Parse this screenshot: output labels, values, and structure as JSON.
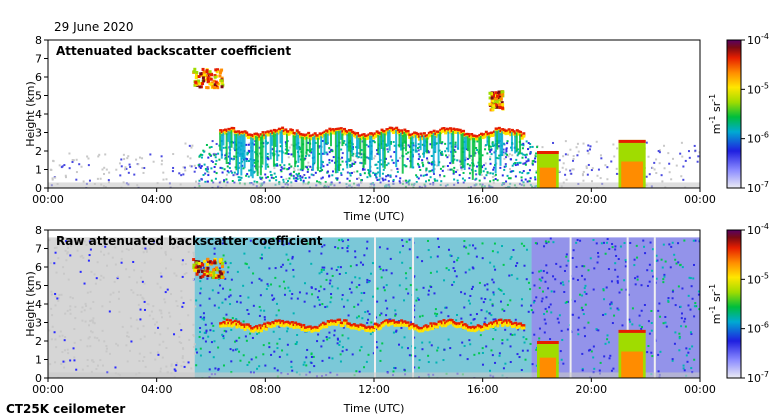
{
  "date": "29 June 2020",
  "instrument": "CT25K ceilometer",
  "colors": {
    "clear_bg": "#ffffff",
    "noise": "#c8c8c8",
    "scale": [
      "#ececf4",
      "#8c8cff",
      "#1f1fe0",
      "#00aad2",
      "#00be3c",
      "#a0dc00",
      "#ffe600",
      "#ff8c00",
      "#e61e00",
      "#7a0a14",
      "#5a0064"
    ]
  },
  "chart_data": [
    {
      "type": "heatmap",
      "title": "Attenuated backscatter coefficient",
      "xlabel": "Time (UTC)",
      "ylabel": "Height (km)",
      "xlim": [
        0,
        24
      ],
      "ylim": [
        0,
        8
      ],
      "x_tick_labels": [
        "00:00",
        "04:00",
        "08:00",
        "12:00",
        "16:00",
        "20:00",
        "00:00"
      ],
      "y_tick_labels": [
        "0",
        "1",
        "2",
        "3",
        "4",
        "5",
        "6",
        "7",
        "8"
      ],
      "colorbar": {
        "scale": "log",
        "range": [
          1e-07,
          0.0001
        ],
        "tick_labels": [
          "10-7",
          "10-6",
          "10-5",
          "10-4"
        ],
        "unit_label": "m-1 sr-1"
      },
      "features": [
        {
          "kind": "cloud_layer",
          "t_start": 6.3,
          "t_end": 17.5,
          "height_km": 2.9
        },
        {
          "kind": "cloud",
          "t_start": 5.3,
          "t_end": 6.4,
          "height_km": 6.0
        },
        {
          "kind": "cloud",
          "t_start": 16.2,
          "t_end": 16.7,
          "height_km": 4.8
        },
        {
          "kind": "precipitation",
          "t_start": 18.0,
          "t_end": 18.8,
          "height_km": 2.0
        },
        {
          "kind": "precipitation",
          "t_start": 21.0,
          "t_end": 22.0,
          "height_km": 2.6
        }
      ]
    },
    {
      "type": "heatmap",
      "title": "Raw attenuated backscatter coefficient",
      "xlabel": "Time (UTC)",
      "ylabel": "Height (km)",
      "xlim": [
        0,
        24
      ],
      "ylim": [
        0,
        8
      ],
      "x_tick_labels": [
        "00:00",
        "04:00",
        "08:00",
        "12:00",
        "16:00",
        "20:00",
        "00:00"
      ],
      "y_tick_labels": [
        "0",
        "1",
        "2",
        "3",
        "4",
        "5",
        "6",
        "7",
        "8"
      ],
      "colorbar": {
        "scale": "log",
        "range": [
          1e-07,
          0.0001
        ],
        "tick_labels": [
          "10-7",
          "10-6",
          "10-5",
          "10-4"
        ],
        "unit_label": "m-1 sr-1"
      },
      "features": [
        {
          "kind": "cloud_layer",
          "t_start": 6.3,
          "t_end": 17.5,
          "height_km": 2.8
        },
        {
          "kind": "cloud",
          "t_start": 5.3,
          "t_end": 6.4,
          "height_km": 6.0
        },
        {
          "kind": "precipitation",
          "t_start": 18.0,
          "t_end": 18.8,
          "height_km": 2.0
        },
        {
          "kind": "precipitation",
          "t_start": 21.0,
          "t_end": 22.0,
          "height_km": 2.6
        }
      ]
    }
  ]
}
